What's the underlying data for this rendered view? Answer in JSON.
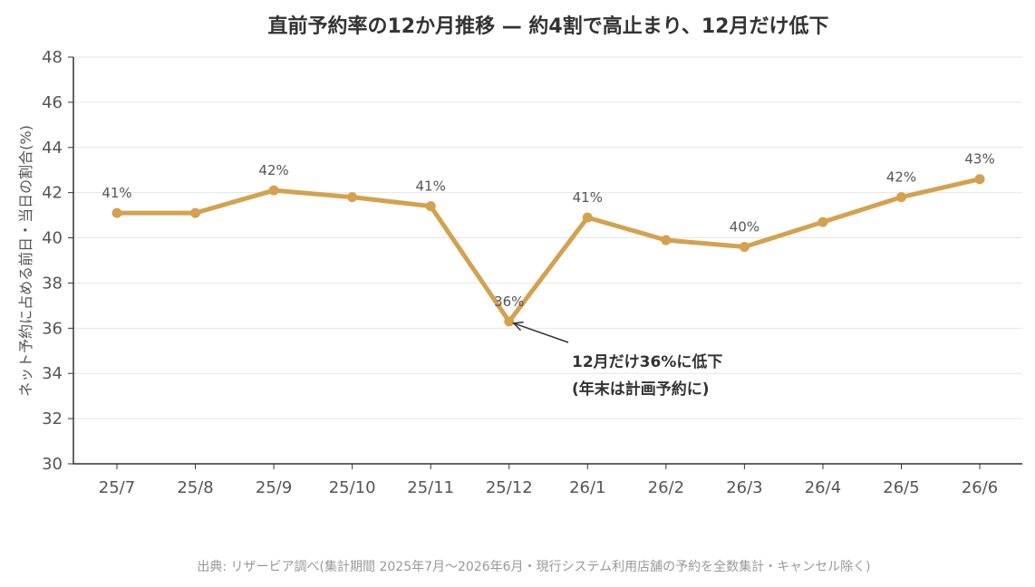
{
  "chart_data": {
    "type": "line",
    "title": "直前予約率の12か月推移 — 約4割で高止まり、12月だけ低下",
    "ylabel": "ネット予約に占める前日・当日の割合(%)",
    "xlabel": "",
    "categories": [
      "25/7",
      "25/8",
      "25/9",
      "25/10",
      "25/11",
      "25/12",
      "26/1",
      "26/2",
      "26/3",
      "26/4",
      "26/5",
      "26/6"
    ],
    "values": [
      41.1,
      41.1,
      42.1,
      41.8,
      41.4,
      36.3,
      40.9,
      39.9,
      39.6,
      40.7,
      41.8,
      42.6
    ],
    "data_labels": [
      "41%",
      "",
      "42%",
      "",
      "41%",
      "36%",
      "41%",
      "",
      "40%",
      "",
      "42%",
      "43%"
    ],
    "ylim": [
      30,
      48
    ],
    "yticks": [
      30,
      32,
      34,
      36,
      38,
      40,
      42,
      44,
      46,
      48
    ],
    "grid": "horizontal",
    "annotation": {
      "lines": [
        "12月だけ36%に低下",
        "(年末は計画予約に)"
      ],
      "target_index": 5
    },
    "source": "出典: リザービア調べ(集計期間 2025年7月〜2026年6月・現行システム利用店舗の予約を全数集計・キャンセル除く)"
  },
  "colors": {
    "line": "#d4a14f",
    "grid": "#e6e6e6",
    "axis": "#333333",
    "annotation_arrow": "#333333"
  }
}
